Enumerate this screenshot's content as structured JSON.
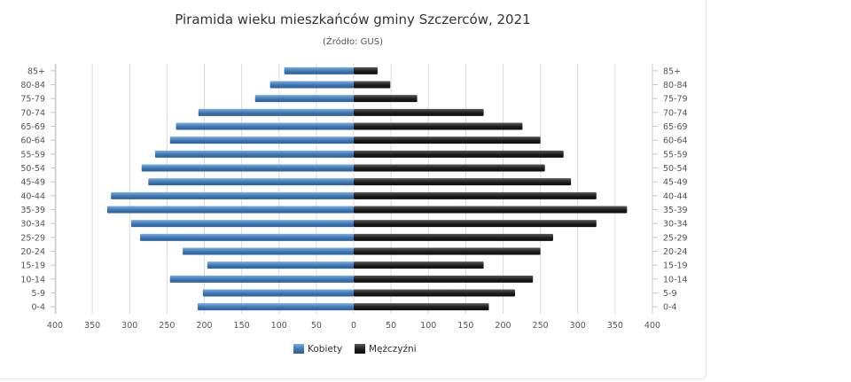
{
  "chart_data": {
    "type": "bar",
    "orientation": "horizontal",
    "layout": "population-pyramid",
    "title": "Piramida wieku mieszkańców gminy Szczerców, 2021",
    "subtitle": "(Źródło: GUS)",
    "categories": [
      "85+",
      "80-84",
      "75-79",
      "70-74",
      "65-69",
      "60-64",
      "55-59",
      "50-54",
      "45-49",
      "40-44",
      "35-39",
      "30-34",
      "25-29",
      "20-24",
      "15-19",
      "10-14",
      "5-9",
      "0-4"
    ],
    "series": [
      {
        "name": "Kobiety",
        "color": "#4a86c2",
        "side": "left",
        "values": [
          93,
          112,
          132,
          208,
          238,
          246,
          266,
          284,
          275,
          325,
          330,
          298,
          286,
          229,
          196,
          246,
          202,
          209
        ]
      },
      {
        "name": "Mężczyźni",
        "color": "#1e1e1e",
        "side": "right",
        "values": [
          32,
          49,
          85,
          174,
          226,
          250,
          281,
          256,
          291,
          325,
          366,
          325,
          267,
          250,
          174,
          240,
          216,
          181
        ]
      }
    ],
    "x_ticks": [
      "400",
      "350",
      "300",
      "250",
      "200",
      "150",
      "100",
      "50",
      "0",
      "50",
      "100",
      "150",
      "200",
      "250",
      "300",
      "350",
      "400"
    ],
    "xlim": [
      -400,
      400
    ],
    "grid": true,
    "legend_position": "bottom"
  }
}
